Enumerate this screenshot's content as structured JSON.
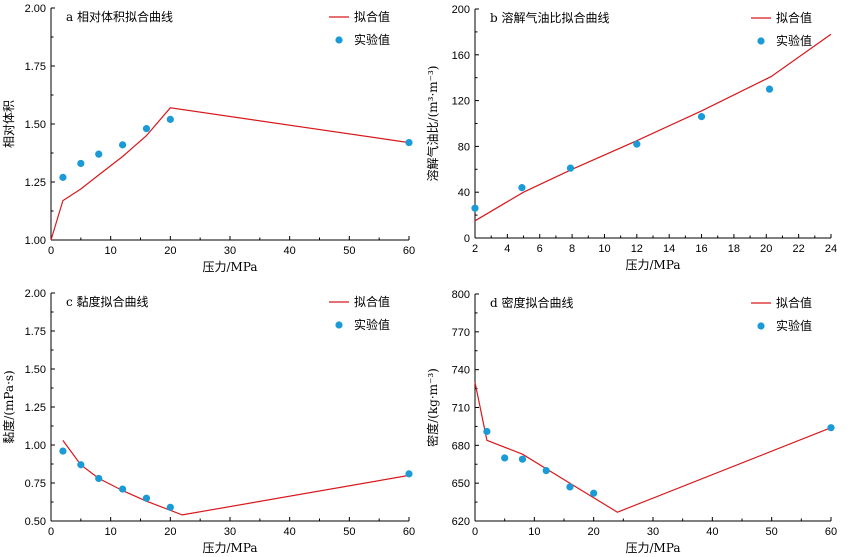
{
  "colors": {
    "fit": "#d7191c",
    "experiment": "#1a9ad6",
    "axis": "#000000"
  },
  "legend": {
    "fit_label": "拟合值",
    "experiment_label": "实验值",
    "placement": "top-right"
  },
  "chart_data": [
    {
      "type": "line",
      "title": "a 相对体积拟合曲线",
      "xlabel": "压力/MPa",
      "ylabel": "相对体积",
      "xlim": [
        0,
        60
      ],
      "ylim": [
        1.0,
        2.0
      ],
      "xticks": [
        0,
        10,
        20,
        30,
        40,
        50,
        60
      ],
      "yticks": [
        1.0,
        1.25,
        1.5,
        1.75,
        2.0
      ],
      "ytick_labels": [
        "1.00",
        "1.25",
        "1.50",
        "1.75",
        "2.00"
      ],
      "series": [
        {
          "name": "拟合值",
          "kind": "line",
          "x": [
            0,
            2,
            5,
            8,
            12,
            16,
            20,
            60
          ],
          "y": [
            1.0,
            1.17,
            1.22,
            1.28,
            1.36,
            1.45,
            1.57,
            1.42
          ]
        },
        {
          "name": "实验值",
          "kind": "scatter",
          "x": [
            2,
            5,
            8,
            12,
            16,
            20,
            60
          ],
          "y": [
            1.27,
            1.33,
            1.37,
            1.41,
            1.48,
            1.52,
            1.42
          ]
        }
      ]
    },
    {
      "type": "line",
      "title": "b 溶解气油比拟合曲线",
      "xlabel": "压力/MPa",
      "ylabel": "溶解气油比/(m³·m⁻³)",
      "xlim": [
        2,
        24
      ],
      "ylim": [
        0,
        200
      ],
      "xticks": [
        2,
        4,
        6,
        8,
        10,
        12,
        14,
        16,
        18,
        20,
        22,
        24
      ],
      "yticks": [
        0,
        40,
        80,
        120,
        160,
        200
      ],
      "ytick_labels": [
        "0",
        "40",
        "80",
        "120",
        "160",
        "200"
      ],
      "series": [
        {
          "name": "拟合值",
          "kind": "line",
          "x": [
            2,
            5,
            8,
            12,
            16,
            20.3,
            24
          ],
          "y": [
            15,
            40,
            60,
            85,
            111,
            141,
            178
          ]
        },
        {
          "name": "实验值",
          "kind": "scatter",
          "x": [
            2,
            4.9,
            7.9,
            12,
            16,
            20.2
          ],
          "y": [
            26,
            44,
            61,
            82,
            106,
            130
          ]
        }
      ]
    },
    {
      "type": "line",
      "title": "c 黏度拟合曲线",
      "xlabel": "压力/MPa",
      "ylabel": "黏度/(mPa·s)",
      "xlim": [
        0,
        60
      ],
      "ylim": [
        0.5,
        2.0
      ],
      "xticks": [
        0,
        10,
        20,
        30,
        40,
        50,
        60
      ],
      "yticks": [
        0.5,
        0.75,
        1.0,
        1.25,
        1.5,
        1.75,
        2.0
      ],
      "ytick_labels": [
        "0.50",
        "0.75",
        "1.00",
        "1.25",
        "1.50",
        "1.75",
        "2.00"
      ],
      "series": [
        {
          "name": "拟合值",
          "kind": "line",
          "x": [
            2,
            5,
            8,
            12,
            16,
            22,
            60
          ],
          "y": [
            1.03,
            0.87,
            0.78,
            0.7,
            0.63,
            0.54,
            0.8
          ]
        },
        {
          "name": "实验值",
          "kind": "scatter",
          "x": [
            2,
            5,
            8,
            12,
            16,
            20,
            60
          ],
          "y": [
            0.96,
            0.87,
            0.78,
            0.71,
            0.65,
            0.59,
            0.81
          ]
        }
      ]
    },
    {
      "type": "line",
      "title": "d 密度拟合曲线",
      "xlabel": "压力/MPa",
      "ylabel": "密度/(kg·m⁻³)",
      "xlim": [
        0,
        60
      ],
      "ylim": [
        620,
        800
      ],
      "xticks": [
        0,
        10,
        20,
        30,
        40,
        50,
        60
      ],
      "yticks": [
        620,
        650,
        680,
        710,
        740,
        770,
        800
      ],
      "ytick_labels": [
        "620",
        "650",
        "680",
        "710",
        "740",
        "770",
        "800"
      ],
      "series": [
        {
          "name": "拟合值",
          "kind": "line",
          "x": [
            0,
            2,
            8,
            16,
            24,
            60
          ],
          "y": [
            730,
            684,
            673,
            650,
            627,
            694
          ]
        },
        {
          "name": "实验值",
          "kind": "scatter",
          "x": [
            2,
            5,
            8,
            12,
            16,
            20,
            60
          ],
          "y": [
            691,
            670,
            669,
            660,
            647,
            642,
            694
          ]
        }
      ]
    }
  ]
}
